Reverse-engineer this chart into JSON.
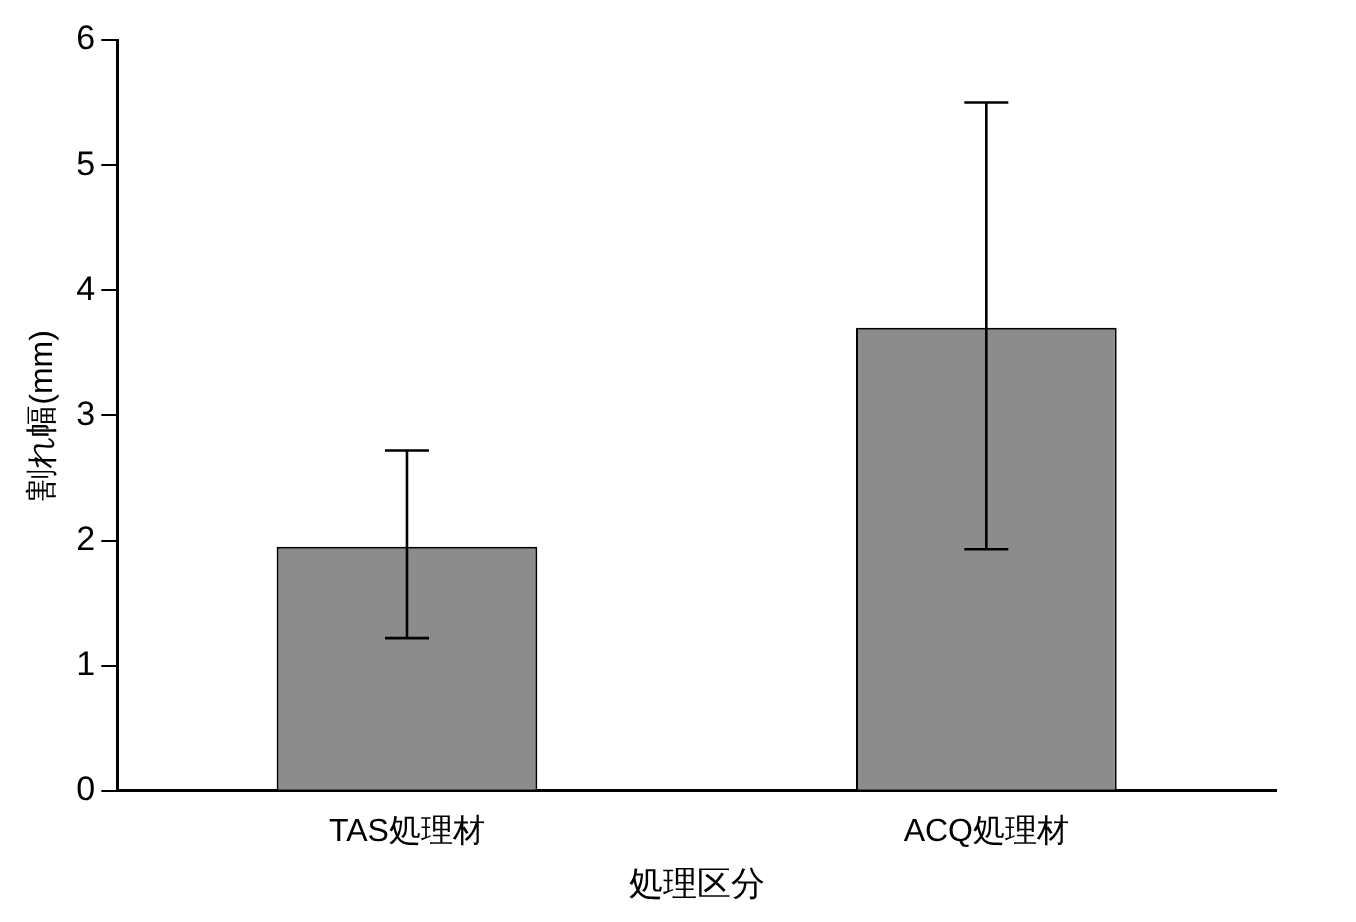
{
  "chart_data": {
    "type": "bar",
    "xlabel": "処理区分",
    "ylabel": "割れ幅(mm)",
    "categories": [
      "TAS処理材",
      "ACQ処理材"
    ],
    "values": [
      1.95,
      3.7
    ],
    "errors": [
      [
        1.22,
        2.72
      ],
      [
        1.93,
        5.5
      ]
    ],
    "color": "#8c8c8c",
    "ylim": [
      0,
      6
    ],
    "yticks": [
      0,
      1,
      2,
      3,
      4,
      5,
      6
    ],
    "legend": false
  }
}
